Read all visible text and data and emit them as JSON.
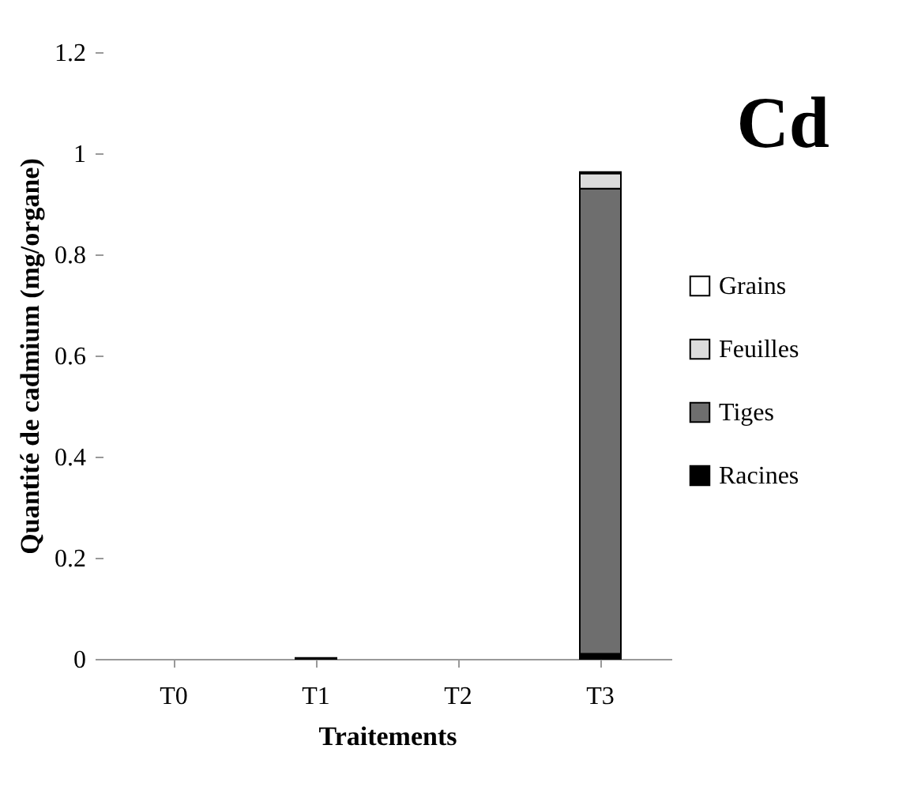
{
  "chart_data": {
    "type": "bar",
    "title": "Cd",
    "xlabel": "Traitements",
    "ylabel": "Quantité de cadmium (mg/organe)",
    "categories": [
      "T0",
      "T1",
      "T2",
      "T3"
    ],
    "stacked": true,
    "series": [
      {
        "name": "Racines",
        "color": "#000000",
        "values": [
          0,
          0.002,
          0,
          0.01
        ]
      },
      {
        "name": "Tiges",
        "color": "#6e6e6e",
        "values": [
          0,
          0,
          0,
          0.92
        ]
      },
      {
        "name": "Feuilles",
        "color": "#dcdcdc",
        "values": [
          0,
          0,
          0,
          0.03
        ]
      },
      {
        "name": "Grains",
        "color": "#ffffff",
        "values": [
          0,
          0,
          0,
          0.003
        ]
      }
    ],
    "ylim": [
      0,
      1.2
    ],
    "yticks": [
      0,
      0.2,
      0.4,
      0.6,
      0.8,
      1,
      1.2
    ],
    "grid": false,
    "legend": "right"
  }
}
